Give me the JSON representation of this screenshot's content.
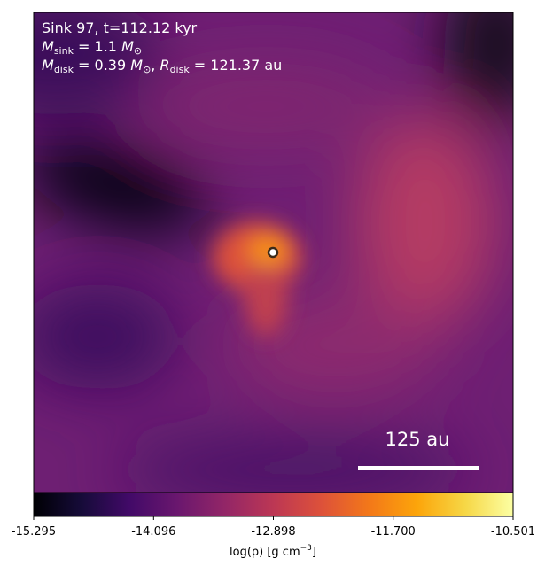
{
  "chart_data": {
    "type": "image",
    "annotations": {
      "title": "Sink 97, t=112.12 kyr",
      "sink_mass": {
        "symbol": "M",
        "subscript": "sink",
        "value": 1.1,
        "unit": "M",
        "unit_subscript": "⊙"
      },
      "disk_mass": {
        "symbol": "M",
        "subscript": "disk",
        "value": 0.39,
        "unit": "M",
        "unit_subscript": "⊙"
      },
      "disk_radius": {
        "symbol": "R",
        "subscript": "disk",
        "value": 121.37,
        "unit": "au"
      }
    },
    "scale_bar": {
      "label": "125 au"
    },
    "colorbar": {
      "colormap": "inferno",
      "lim": [
        -15.295,
        -10.501
      ],
      "ticks": [
        -15.295,
        -14.096,
        -12.898,
        {
          "value": -11.7,
          "label": "-11.700"
        },
        -10.501
      ],
      "label": "log(ρ) [g cm",
      "label_exponent": "−3",
      "label_end": "]"
    }
  }
}
